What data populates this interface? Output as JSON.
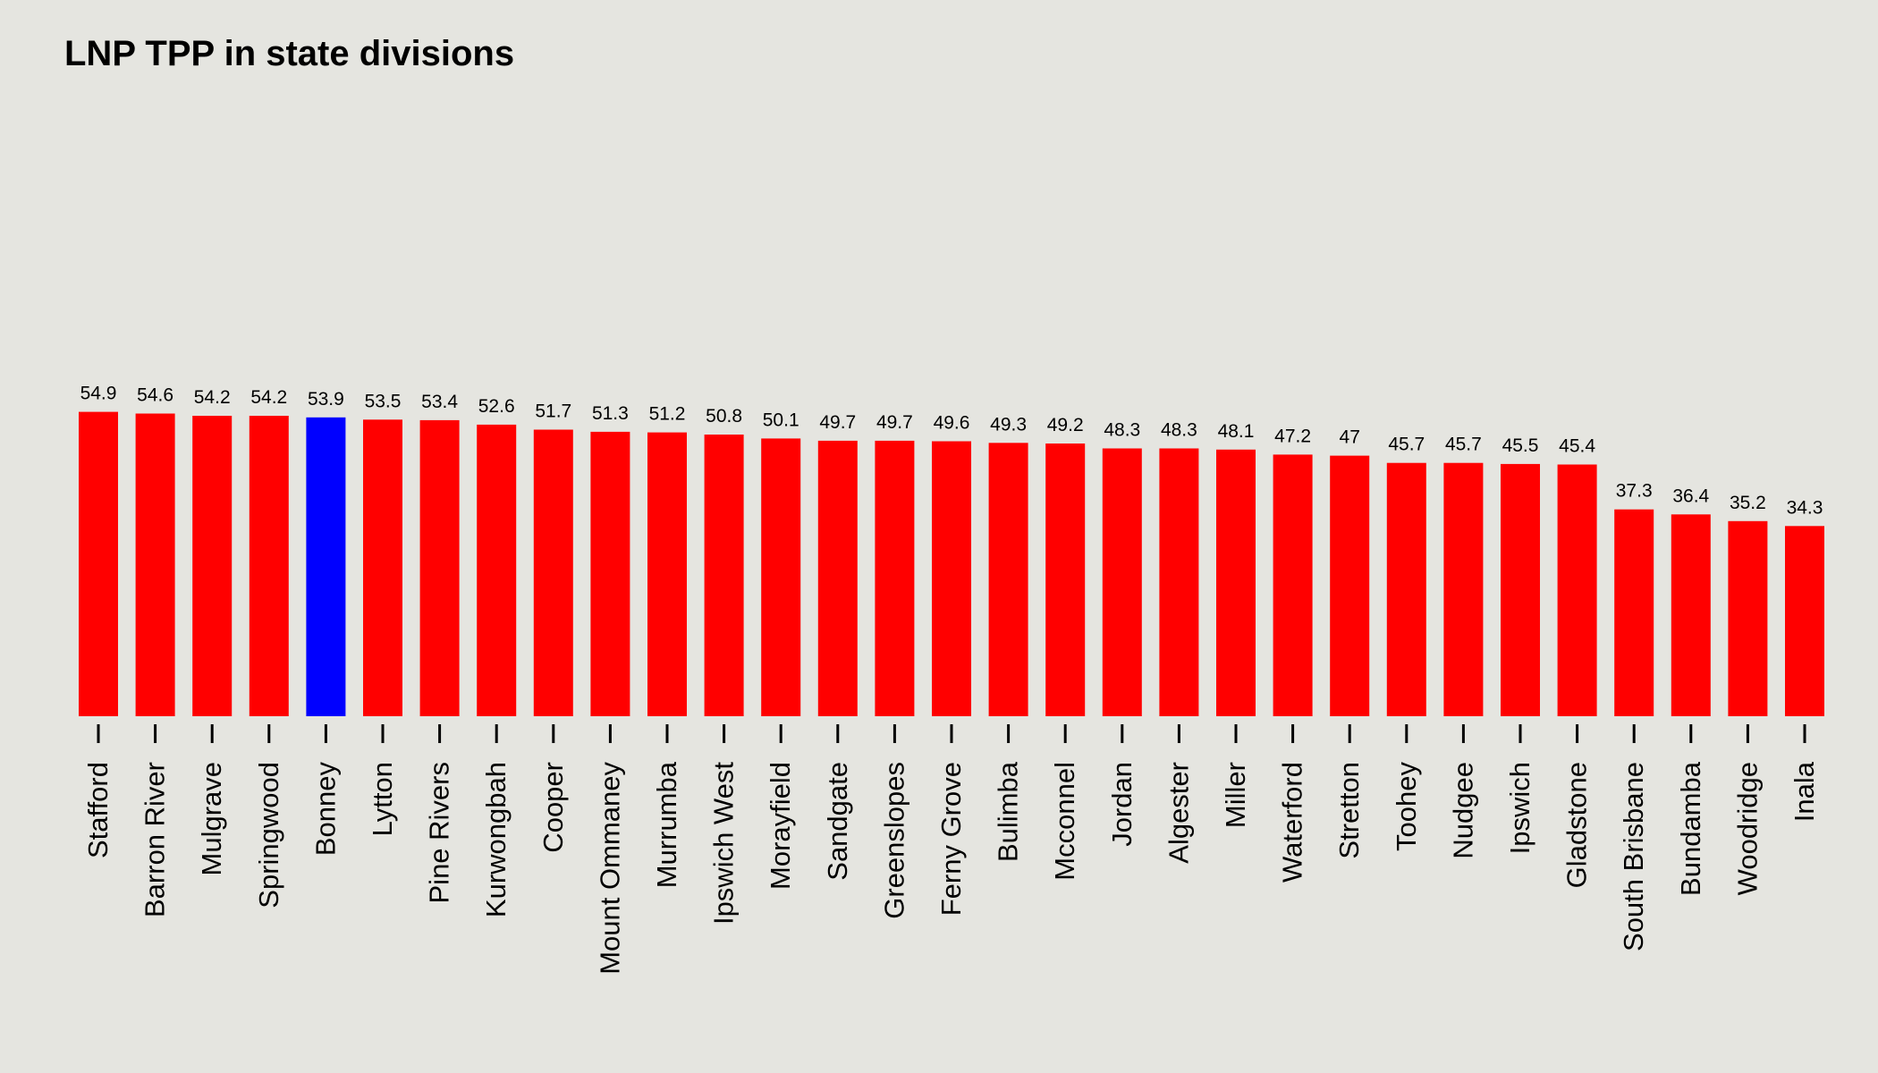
{
  "chart_data": {
    "type": "bar",
    "title": "LNP TPP in state divisions",
    "xlabel": "",
    "ylabel": "",
    "ylim": [
      0,
      100
    ],
    "grid": false,
    "legend": "none",
    "categories": [
      "Stafford",
      "Barron River",
      "Mulgrave",
      "Springwood",
      "Bonney",
      "Lytton",
      "Pine Rivers",
      "Kurwongbah",
      "Cooper",
      "Mount Ommaney",
      "Murrumba",
      "Ipswich West",
      "Morayfield",
      "Sandgate",
      "Greenslopes",
      "Ferny Grove",
      "Bulimba",
      "Mcconnel",
      "Jordan",
      "Algester",
      "Miller",
      "Waterford",
      "Stretton",
      "Toohey",
      "Nudgee",
      "Ipswich",
      "Gladstone",
      "South Brisbane",
      "Bundamba",
      "Woodridge",
      "Inala"
    ],
    "values": [
      54.9,
      54.6,
      54.2,
      54.2,
      53.9,
      53.5,
      53.4,
      52.6,
      51.7,
      51.3,
      51.2,
      50.8,
      50.1,
      49.7,
      49.7,
      49.6,
      49.3,
      49.2,
      48.3,
      48.3,
      48.1,
      47.2,
      47,
      45.7,
      45.7,
      45.5,
      45.4,
      37.3,
      36.4,
      35.2,
      34.3
    ],
    "highlight": "Bonney",
    "colors": {
      "default": "#FF0000",
      "highlight": "#0000FF",
      "background": "#E5E5E0"
    }
  }
}
